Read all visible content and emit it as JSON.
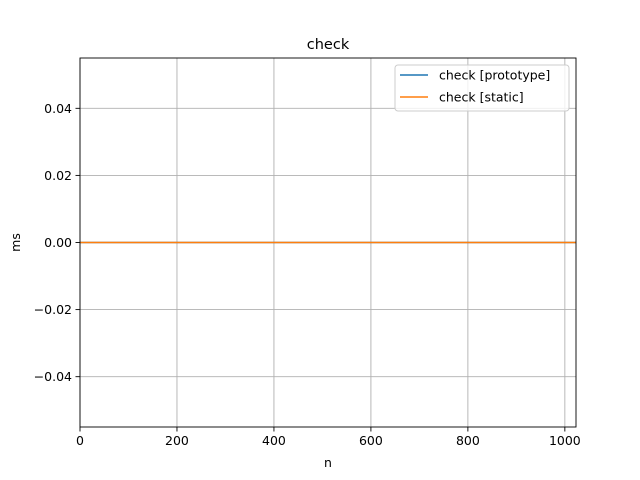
{
  "chart_data": {
    "type": "line",
    "title": "check",
    "xlabel": "n",
    "ylabel": "ms",
    "xlim": [
      0,
      1023
    ],
    "ylim": [
      -0.055,
      0.055
    ],
    "xticks": [
      0,
      200,
      400,
      600,
      800,
      1000
    ],
    "xtick_labels": [
      "0",
      "200",
      "400",
      "600",
      "800",
      "1000"
    ],
    "yticks": [
      -0.04,
      -0.02,
      0.0,
      0.02,
      0.04
    ],
    "ytick_labels": [
      "−0.04",
      "−0.02",
      "0.00",
      "0.02",
      "0.04"
    ],
    "grid": true,
    "legend_position": "top-right",
    "series": [
      {
        "name": "check [prototype]",
        "color": "#1f77b4",
        "x": [
          0,
          1023
        ],
        "y": [
          0,
          0
        ]
      },
      {
        "name": "check [static]",
        "color": "#ff7f0e",
        "x": [
          0,
          1023
        ],
        "y": [
          0,
          0
        ]
      }
    ]
  }
}
